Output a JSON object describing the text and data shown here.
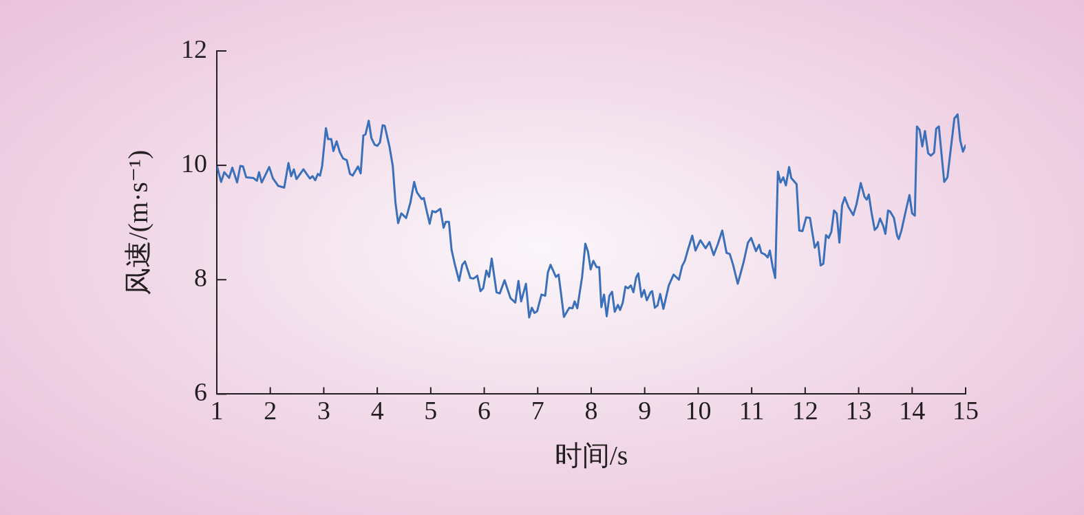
{
  "chart_data": {
    "type": "line",
    "xlabel": "时间/s",
    "ylabel": "风速/(m·s⁻¹)",
    "xlim": [
      1,
      15
    ],
    "xticks": [
      1,
      2,
      3,
      4,
      5,
      6,
      7,
      8,
      9,
      10,
      11,
      12,
      13,
      14,
      15
    ],
    "ylim": [
      6,
      12
    ],
    "yticks": [
      6,
      8,
      10,
      12
    ],
    "marker": "none",
    "line_style": "solid",
    "series": [
      {
        "color": "#3a6fba",
        "x": [
          1.0,
          1.08,
          1.14,
          1.23,
          1.29,
          1.38,
          1.44,
          1.49,
          1.55,
          1.68,
          1.75,
          1.79,
          1.84,
          1.98,
          2.05,
          2.15,
          2.26,
          2.34,
          2.39,
          2.44,
          2.49,
          2.62,
          2.74,
          2.79,
          2.84,
          2.89,
          2.93,
          2.97,
          3.04,
          3.08,
          3.14,
          3.18,
          3.24,
          3.3,
          3.36,
          3.43,
          3.49,
          3.54,
          3.64,
          3.69,
          3.74,
          3.78,
          3.84,
          3.89,
          3.95,
          4.0,
          4.05,
          4.1,
          4.14,
          4.23,
          4.29,
          4.34,
          4.39,
          4.45,
          4.54,
          4.62,
          4.69,
          4.74,
          4.83,
          4.87,
          4.92,
          4.98,
          5.03,
          5.09,
          5.18,
          5.24,
          5.28,
          5.34,
          5.39,
          5.45,
          5.53,
          5.59,
          5.64,
          5.74,
          5.8,
          5.87,
          5.93,
          5.98,
          6.04,
          6.09,
          6.14,
          6.23,
          6.29,
          6.38,
          6.49,
          6.58,
          6.64,
          6.69,
          6.78,
          6.84,
          6.89,
          6.94,
          6.99,
          7.07,
          7.14,
          7.19,
          7.24,
          7.34,
          7.39,
          7.43,
          7.49,
          7.59,
          7.65,
          7.69,
          7.74,
          7.83,
          7.89,
          7.94,
          7.99,
          8.04,
          8.1,
          8.15,
          8.19,
          8.24,
          8.29,
          8.34,
          8.39,
          8.44,
          8.5,
          8.54,
          8.59,
          8.64,
          8.69,
          8.74,
          8.79,
          8.84,
          8.88,
          8.94,
          8.99,
          9.04,
          9.11,
          9.14,
          9.19,
          9.24,
          9.29,
          9.35,
          9.45,
          9.54,
          9.64,
          9.7,
          9.75,
          9.81,
          9.89,
          9.95,
          10.04,
          10.14,
          10.21,
          10.29,
          10.37,
          10.45,
          10.53,
          10.59,
          10.65,
          10.74,
          10.85,
          10.93,
          10.99,
          11.08,
          11.14,
          11.18,
          11.25,
          11.3,
          11.34,
          11.39,
          11.44,
          11.49,
          11.54,
          11.59,
          11.64,
          11.7,
          11.74,
          11.84,
          11.89,
          11.95,
          12.02,
          12.09,
          12.18,
          12.24,
          12.29,
          12.34,
          12.39,
          12.44,
          12.49,
          12.54,
          12.59,
          12.64,
          12.69,
          12.74,
          12.81,
          12.9,
          12.96,
          13.04,
          13.11,
          13.15,
          13.19,
          13.24,
          13.3,
          13.35,
          13.4,
          13.46,
          13.5,
          13.55,
          13.59,
          13.66,
          13.72,
          13.75,
          13.8,
          13.89,
          13.95,
          14.0,
          14.05,
          14.09,
          14.14,
          14.19,
          14.24,
          14.3,
          14.35,
          14.41,
          14.45,
          14.5,
          14.6,
          14.66,
          14.79,
          14.85,
          14.9,
          14.95,
          15.0
        ],
        "values": [
          10.0,
          9.71,
          9.88,
          9.78,
          9.96,
          9.7,
          9.99,
          9.98,
          9.79,
          9.78,
          9.73,
          9.88,
          9.7,
          9.97,
          9.77,
          9.64,
          9.61,
          10.04,
          9.81,
          9.93,
          9.76,
          9.93,
          9.77,
          9.81,
          9.74,
          9.85,
          9.82,
          9.99,
          10.65,
          10.46,
          10.46,
          10.25,
          10.42,
          10.23,
          10.12,
          10.09,
          9.85,
          9.82,
          9.98,
          9.86,
          10.52,
          10.54,
          10.78,
          10.48,
          10.36,
          10.34,
          10.4,
          10.7,
          10.69,
          10.32,
          9.99,
          9.35,
          8.99,
          9.16,
          9.08,
          9.35,
          9.71,
          9.53,
          9.41,
          9.43,
          9.22,
          8.98,
          9.2,
          9.18,
          9.24,
          8.91,
          9.01,
          9.01,
          8.52,
          8.27,
          7.98,
          8.26,
          8.32,
          8.03,
          8.02,
          8.07,
          7.8,
          7.85,
          8.16,
          8.05,
          8.37,
          7.78,
          7.76,
          7.99,
          7.68,
          7.6,
          7.98,
          7.62,
          7.93,
          7.34,
          7.51,
          7.42,
          7.45,
          7.74,
          7.72,
          8.13,
          8.26,
          8.05,
          8.09,
          7.8,
          7.35,
          7.51,
          7.5,
          7.62,
          7.5,
          8.05,
          8.63,
          8.49,
          8.18,
          8.33,
          8.22,
          8.22,
          7.52,
          7.74,
          7.36,
          7.72,
          7.79,
          7.44,
          7.56,
          7.47,
          7.6,
          7.88,
          7.85,
          7.9,
          7.78,
          8.04,
          8.11,
          7.7,
          7.82,
          7.64,
          7.78,
          7.8,
          7.51,
          7.55,
          7.75,
          7.49,
          7.9,
          8.09,
          8.0,
          8.24,
          8.33,
          8.53,
          8.77,
          8.51,
          8.69,
          8.55,
          8.66,
          8.43,
          8.63,
          8.86,
          8.47,
          8.45,
          8.27,
          7.93,
          8.31,
          8.65,
          8.73,
          8.5,
          8.61,
          8.47,
          8.44,
          8.39,
          8.51,
          8.24,
          8.03,
          9.89,
          9.7,
          9.79,
          9.65,
          9.97,
          9.78,
          9.67,
          8.86,
          8.85,
          9.09,
          9.08,
          8.56,
          8.66,
          8.25,
          8.28,
          8.78,
          8.73,
          8.84,
          9.21,
          9.16,
          8.65,
          9.3,
          9.44,
          9.27,
          9.13,
          9.32,
          9.69,
          9.45,
          9.4,
          9.49,
          9.18,
          8.87,
          8.92,
          9.07,
          8.94,
          8.8,
          9.21,
          9.19,
          9.08,
          8.77,
          8.71,
          8.86,
          9.24,
          9.48,
          9.16,
          9.12,
          10.68,
          10.62,
          10.33,
          10.6,
          10.21,
          10.17,
          10.22,
          10.64,
          10.68,
          9.71,
          9.79,
          10.82,
          10.89,
          10.43,
          10.24,
          10.35
        ]
      }
    ]
  }
}
